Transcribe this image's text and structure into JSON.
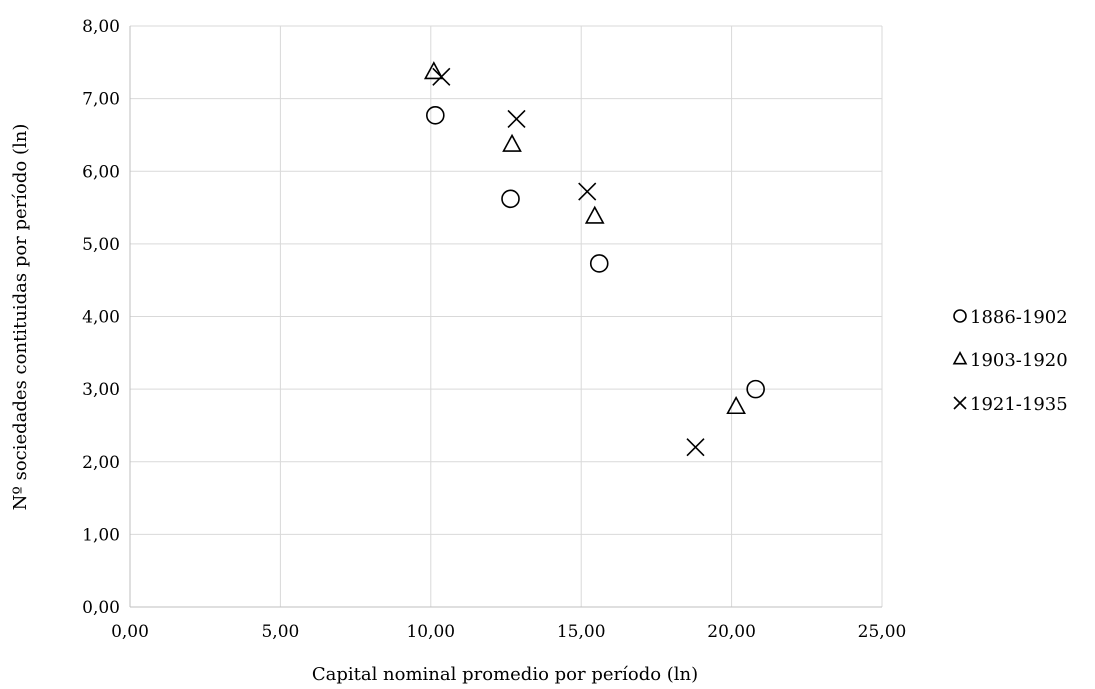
{
  "chart_data": {
    "type": "scatter",
    "title": "",
    "xlabel": "Capital nominal promedio por período (ln)",
    "ylabel": "Nº sociedades contituidas por período (ln)",
    "xlim": [
      0,
      25
    ],
    "ylim": [
      0,
      8
    ],
    "x_ticks": [
      "0,00",
      "5,00",
      "10,00",
      "15,00",
      "20,00",
      "25,00"
    ],
    "y_ticks": [
      "0,00",
      "1,00",
      "2,00",
      "3,00",
      "4,00",
      "5,00",
      "6,00",
      "7,00",
      "8,00"
    ],
    "grid": true,
    "legend_position": "right",
    "series": [
      {
        "name": "1886-1902",
        "marker": "circle",
        "points": [
          [
            10.15,
            6.77
          ],
          [
            12.65,
            5.62
          ],
          [
            15.6,
            4.73
          ],
          [
            20.8,
            3.0
          ]
        ]
      },
      {
        "name": "1903-1920",
        "marker": "triangle",
        "points": [
          [
            10.1,
            7.37
          ],
          [
            12.7,
            6.37
          ],
          [
            15.45,
            5.38
          ],
          [
            20.15,
            2.76
          ]
        ]
      },
      {
        "name": "1921-1935",
        "marker": "x",
        "points": [
          [
            10.35,
            7.3
          ],
          [
            12.85,
            6.72
          ],
          [
            15.2,
            5.72
          ],
          [
            18.8,
            2.2
          ]
        ]
      }
    ]
  }
}
